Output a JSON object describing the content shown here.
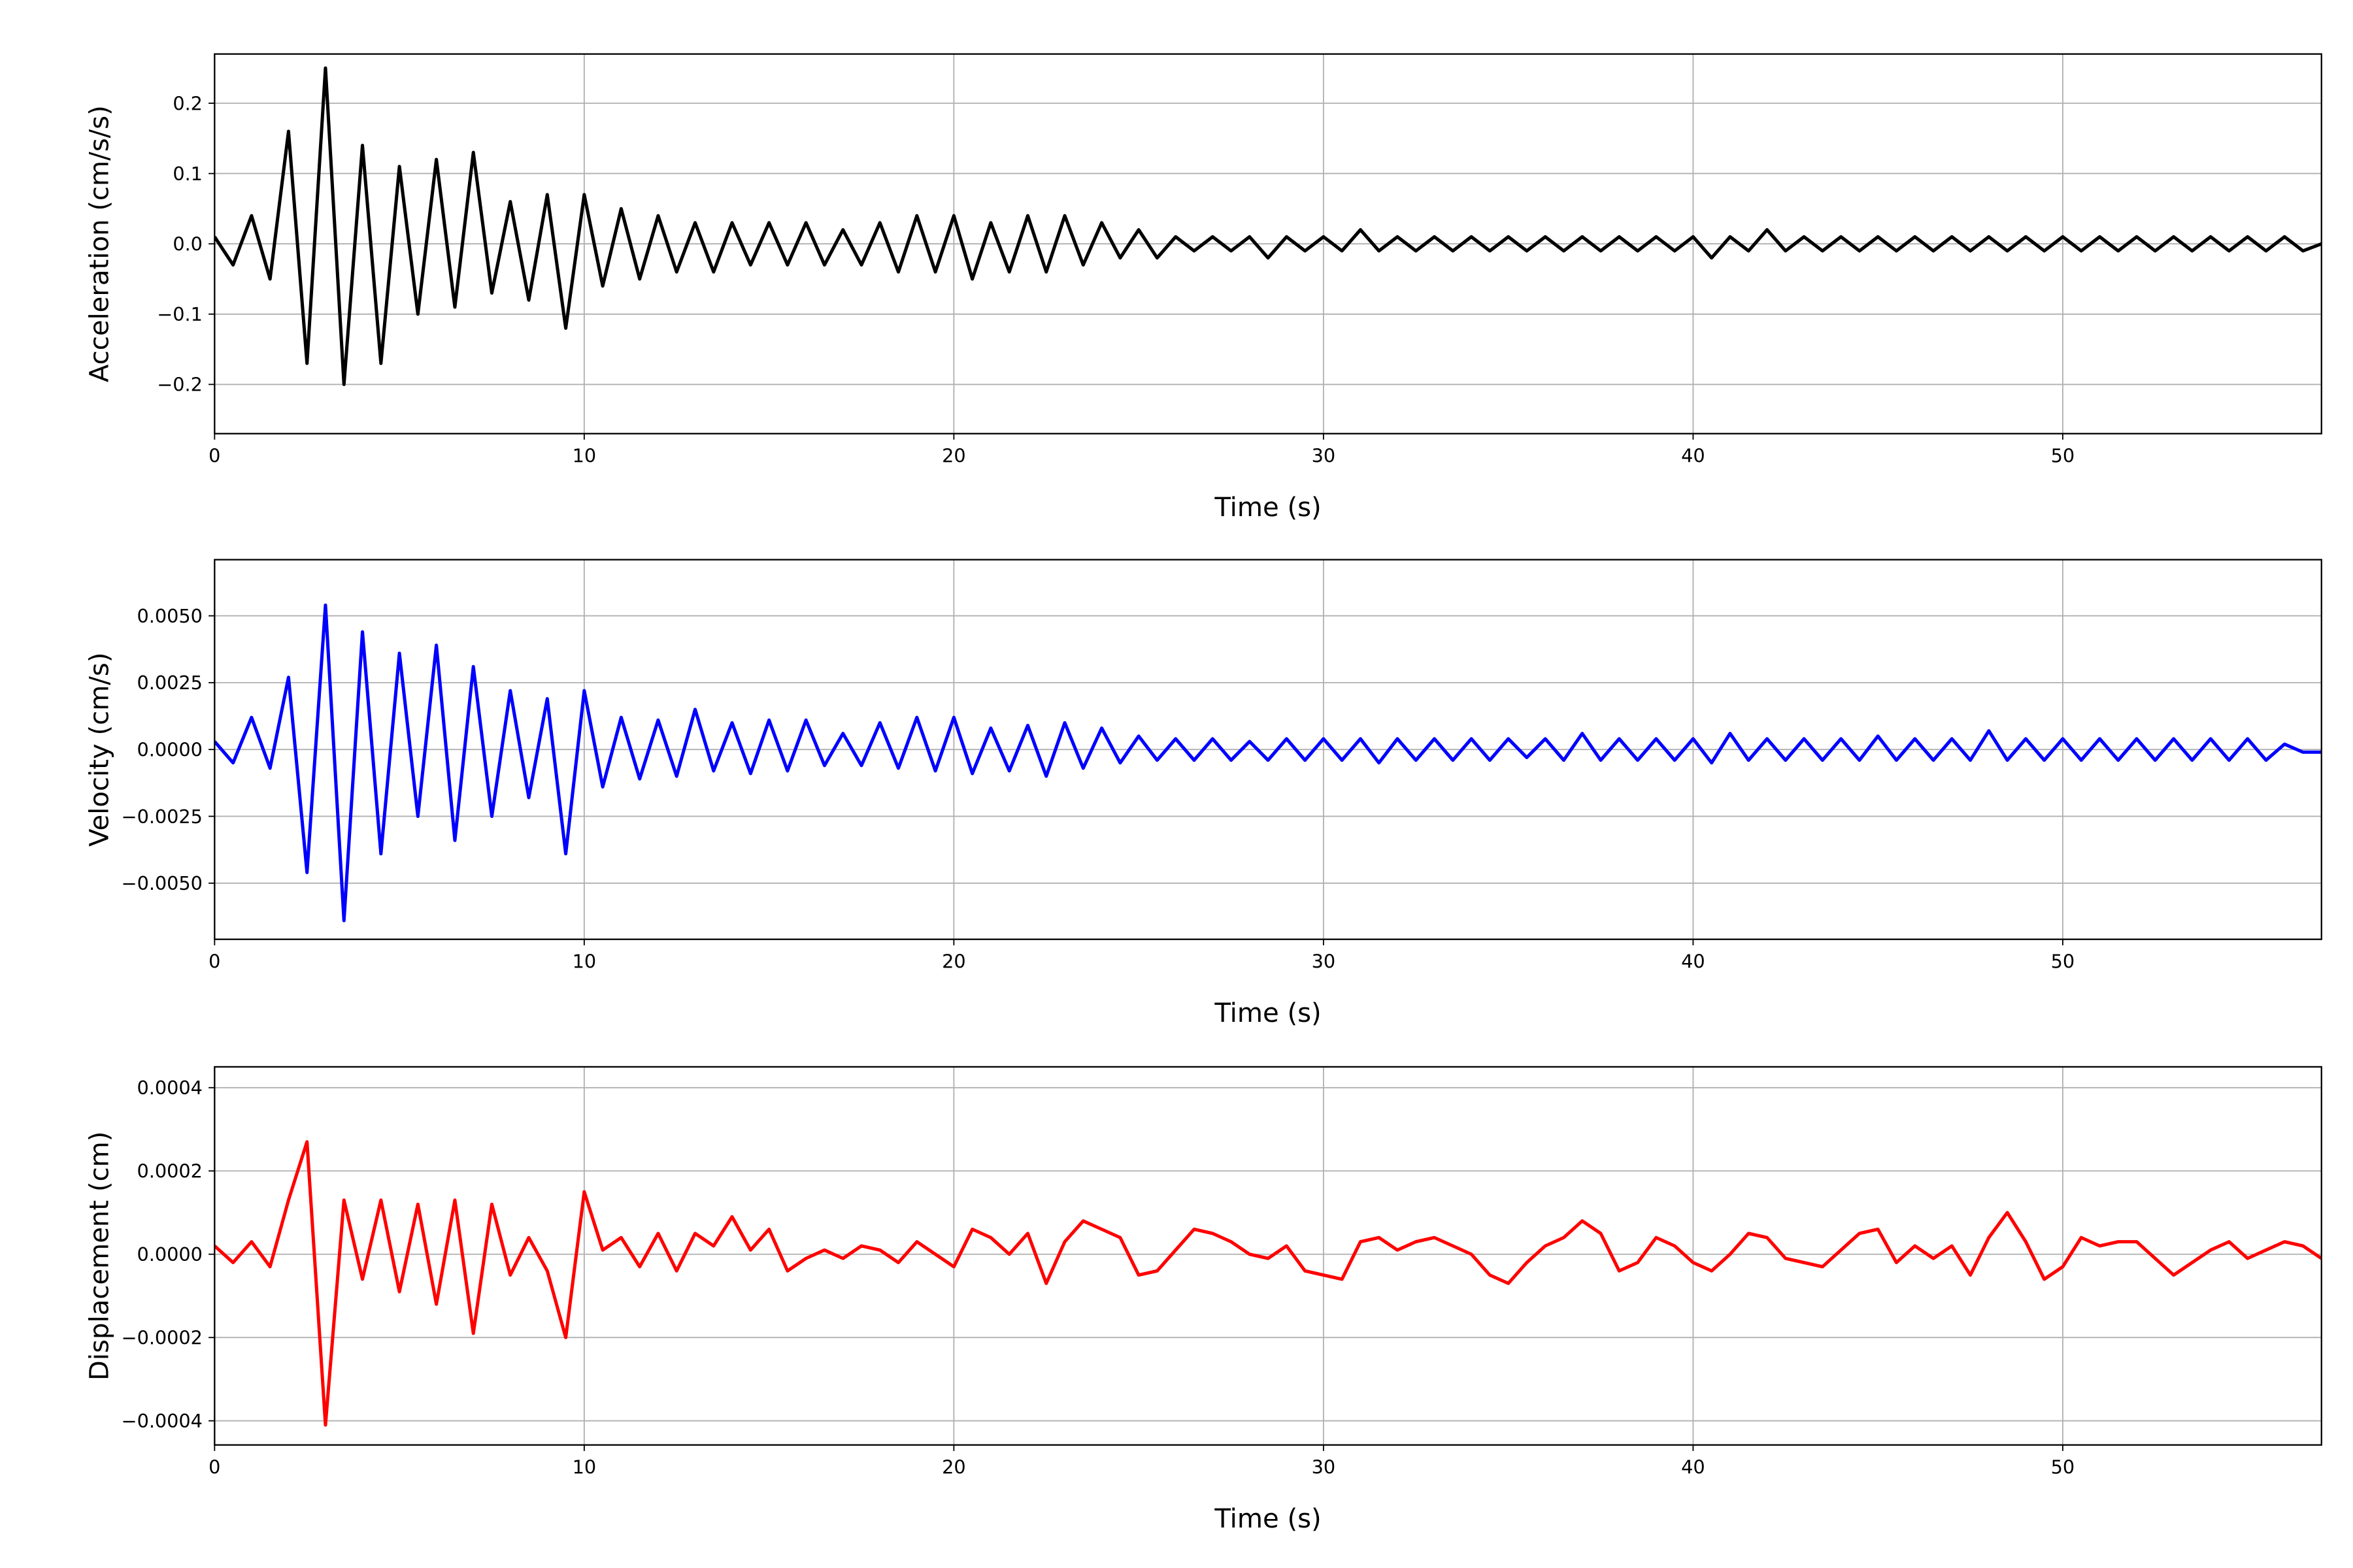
{
  "chart_data": [
    {
      "type": "line",
      "xlabel": "Time (s)",
      "ylabel": "Acceleration (cm/s/s)",
      "color": "#000000",
      "grid": true,
      "xlim": [
        0,
        57
      ],
      "xticks": [
        0,
        10,
        20,
        30,
        40,
        50
      ],
      "ylim": [
        -0.27,
        0.27
      ],
      "yticks": [
        {
          "value": -0.2,
          "label": "−0.2"
        },
        {
          "value": -0.1,
          "label": "−0.1"
        },
        {
          "value": 0,
          "label": "0.0"
        },
        0.1,
        0.2
      ],
      "x": [
        0,
        0.5,
        1,
        1.5,
        2,
        2.5,
        3,
        3.5,
        4,
        4.5,
        5,
        5.5,
        6,
        6.5,
        7,
        7.5,
        8,
        8.5,
        9,
        9.5,
        10,
        10.5,
        11,
        11.5,
        12,
        12.5,
        13,
        13.5,
        14,
        14.5,
        15,
        15.5,
        16,
        16.5,
        17,
        17.5,
        18,
        18.5,
        19,
        19.5,
        20,
        20.5,
        21,
        21.5,
        22,
        22.5,
        23,
        23.5,
        24,
        24.5,
        25,
        25.5,
        26,
        26.5,
        27,
        27.5,
        28,
        28.5,
        29,
        29.5,
        30,
        30.5,
        31,
        31.5,
        32,
        32.5,
        33,
        33.5,
        34,
        34.5,
        35,
        35.5,
        36,
        36.5,
        37,
        37.5,
        38,
        38.5,
        39,
        39.5,
        40,
        40.5,
        41,
        41.5,
        42,
        42.5,
        43,
        43.5,
        44,
        44.5,
        45,
        45.5,
        46,
        46.5,
        47,
        47.5,
        48,
        48.5,
        49,
        49.5,
        50,
        50.5,
        51,
        51.5,
        52,
        52.5,
        53,
        53.5,
        54,
        54.5,
        55,
        55.5,
        56,
        56.5,
        57
      ],
      "values": [
        0.01,
        -0.03,
        0.04,
        -0.05,
        0.16,
        -0.17,
        0.25,
        -0.2,
        0.14,
        -0.17,
        0.11,
        -0.1,
        0.12,
        -0.09,
        0.13,
        -0.07,
        0.06,
        -0.08,
        0.07,
        -0.12,
        0.07,
        -0.06,
        0.05,
        -0.05,
        0.04,
        -0.04,
        0.03,
        -0.04,
        0.03,
        -0.03,
        0.03,
        -0.03,
        0.03,
        -0.03,
        0.02,
        -0.03,
        0.03,
        -0.04,
        0.04,
        -0.04,
        0.04,
        -0.05,
        0.03,
        -0.04,
        0.04,
        -0.04,
        0.04,
        -0.03,
        0.03,
        -0.02,
        0.02,
        -0.02,
        0.01,
        -0.01,
        0.01,
        -0.01,
        0.01,
        -0.02,
        0.01,
        -0.01,
        0.01,
        -0.01,
        0.02,
        -0.01,
        0.01,
        -0.01,
        0.01,
        -0.01,
        0.01,
        -0.01,
        0.01,
        -0.01,
        0.01,
        -0.01,
        0.01,
        -0.01,
        0.01,
        -0.01,
        0.01,
        -0.01,
        0.01,
        -0.02,
        0.01,
        -0.01,
        0.02,
        -0.01,
        0.01,
        -0.01,
        0.01,
        -0.01,
        0.01,
        -0.01,
        0.01,
        -0.01,
        0.01,
        -0.01,
        0.01,
        -0.01,
        0.01,
        -0.01,
        0.01,
        -0.01,
        0.01,
        -0.01,
        0.01,
        -0.01,
        0.01,
        -0.01,
        0.01,
        -0.01,
        0.01,
        -0.01,
        0.01,
        -0.01,
        0
      ]
    },
    {
      "type": "line",
      "xlabel": "Time (s)",
      "ylabel": "Velocity (cm/s)",
      "color": "#0000ff",
      "grid": true,
      "xlim": [
        0,
        57
      ],
      "xticks": [
        0,
        10,
        20,
        30,
        40,
        50
      ],
      "ylim": [
        -0.0071,
        0.0071
      ],
      "yticks": [
        {
          "value": -0.005,
          "label": "−0.0050"
        },
        {
          "value": -0.0025,
          "label": "−0.0025"
        },
        {
          "value": 0,
          "label": "0.0000"
        },
        {
          "value": 0.0025,
          "label": "0.0025"
        },
        {
          "value": 0.005,
          "label": "0.0050"
        }
      ],
      "x": [
        0,
        0.5,
        1,
        1.5,
        2,
        2.5,
        3,
        3.5,
        4,
        4.5,
        5,
        5.5,
        6,
        6.5,
        7,
        7.5,
        8,
        8.5,
        9,
        9.5,
        10,
        10.5,
        11,
        11.5,
        12,
        12.5,
        13,
        13.5,
        14,
        14.5,
        15,
        15.5,
        16,
        16.5,
        17,
        17.5,
        18,
        18.5,
        19,
        19.5,
        20,
        20.5,
        21,
        21.5,
        22,
        22.5,
        23,
        23.5,
        24,
        24.5,
        25,
        25.5,
        26,
        26.5,
        27,
        27.5,
        28,
        28.5,
        29,
        29.5,
        30,
        30.5,
        31,
        31.5,
        32,
        32.5,
        33,
        33.5,
        34,
        34.5,
        35,
        35.5,
        36,
        36.5,
        37,
        37.5,
        38,
        38.5,
        39,
        39.5,
        40,
        40.5,
        41,
        41.5,
        42,
        42.5,
        43,
        43.5,
        44,
        44.5,
        45,
        45.5,
        46,
        46.5,
        47,
        47.5,
        48,
        48.5,
        49,
        49.5,
        50,
        50.5,
        51,
        51.5,
        52,
        52.5,
        53,
        53.5,
        54,
        54.5,
        55,
        55.5,
        56,
        56.5,
        57
      ],
      "values": [
        0.0003,
        -0.0005,
        0.0012,
        -0.0007,
        0.0027,
        -0.0046,
        0.0054,
        -0.0064,
        0.0044,
        -0.0039,
        0.0036,
        -0.0025,
        0.0039,
        -0.0034,
        0.0031,
        -0.0025,
        0.0022,
        -0.0018,
        0.0019,
        -0.0039,
        0.0022,
        -0.0014,
        0.0012,
        -0.0011,
        0.0011,
        -0.001,
        0.0015,
        -0.0008,
        0.001,
        -0.0009,
        0.0011,
        -0.0008,
        0.0011,
        -0.0006,
        0.0006,
        -0.0006,
        0.001,
        -0.0007,
        0.0012,
        -0.0008,
        0.0012,
        -0.0009,
        0.0008,
        -0.0008,
        0.0009,
        -0.001,
        0.001,
        -0.0007,
        0.0008,
        -0.0005,
        0.0005,
        -0.0004,
        0.0004,
        -0.0004,
        0.0004,
        -0.0004,
        0.0003,
        -0.0004,
        0.0004,
        -0.0004,
        0.0004,
        -0.0004,
        0.0004,
        -0.0005,
        0.0004,
        -0.0004,
        0.0004,
        -0.0004,
        0.0004,
        -0.0004,
        0.0004,
        -0.0003,
        0.0004,
        -0.0004,
        0.0006,
        -0.0004,
        0.0004,
        -0.0004,
        0.0004,
        -0.0004,
        0.0004,
        -0.0005,
        0.0006,
        -0.0004,
        0.0004,
        -0.0004,
        0.0004,
        -0.0004,
        0.0004,
        -0.0004,
        0.0005,
        -0.0004,
        0.0004,
        -0.0004,
        0.0004,
        -0.0004,
        0.0007,
        -0.0004,
        0.0004,
        -0.0004,
        0.0004,
        -0.0004,
        0.0004,
        -0.0004,
        0.0004,
        -0.0004,
        0.0004,
        -0.0004,
        0.0004,
        -0.0004,
        0.0004,
        -0.0004,
        0.0002,
        -0.0001,
        -0.0001
      ]
    },
    {
      "type": "line",
      "xlabel": "Time (s)",
      "ylabel": "Displacement (cm)",
      "color": "#ff0000",
      "grid": true,
      "xlim": [
        0,
        57
      ],
      "xticks": [
        0,
        10,
        20,
        30,
        40,
        50
      ],
      "ylim": [
        -0.000458,
        0.00045
      ],
      "yticks": [
        {
          "value": -0.0004,
          "label": "−0.0004"
        },
        {
          "value": -0.0002,
          "label": "−0.0002"
        },
        {
          "value": 0,
          "label": "0.0000"
        },
        0.0002,
        0.0004
      ],
      "x": [
        0,
        0.5,
        1,
        1.5,
        2,
        2.5,
        3,
        3.5,
        4,
        4.5,
        5,
        5.5,
        6,
        6.5,
        7,
        7.5,
        8,
        8.5,
        9,
        9.5,
        10,
        10.5,
        11,
        11.5,
        12,
        12.5,
        13,
        13.5,
        14,
        14.5,
        15,
        15.5,
        16,
        16.5,
        17,
        17.5,
        18,
        18.5,
        19,
        19.5,
        20,
        20.5,
        21,
        21.5,
        22,
        22.5,
        23,
        23.5,
        24,
        24.5,
        25,
        25.5,
        26,
        26.5,
        27,
        27.5,
        28,
        28.5,
        29,
        29.5,
        30,
        30.5,
        31,
        31.5,
        32,
        32.5,
        33,
        33.5,
        34,
        34.5,
        35,
        35.5,
        36,
        36.5,
        37,
        37.5,
        38,
        38.5,
        39,
        39.5,
        40,
        40.5,
        41,
        41.5,
        42,
        42.5,
        43,
        43.5,
        44,
        44.5,
        45,
        45.5,
        46,
        46.5,
        47,
        47.5,
        48,
        48.5,
        49,
        49.5,
        50,
        50.5,
        51,
        51.5,
        52,
        52.5,
        53,
        53.5,
        54,
        54.5,
        55,
        55.5,
        56,
        56.5,
        57
      ],
      "values": [
        2e-05,
        -2e-05,
        3e-05,
        -3e-05,
        0.00013,
        0.00027,
        -0.00041,
        0.00013,
        -6e-05,
        0.00013,
        -9e-05,
        0.00012,
        -0.00012,
        0.00013,
        -0.00019,
        0.00012,
        -5e-05,
        4e-05,
        -4e-05,
        -0.0002,
        0.00015,
        1e-05,
        4e-05,
        -3e-05,
        5e-05,
        -4e-05,
        5e-05,
        2e-05,
        9e-05,
        1e-05,
        6e-05,
        -4e-05,
        -1e-05,
        1e-05,
        -1e-05,
        2e-05,
        1e-05,
        -2e-05,
        3e-05,
        0,
        -3e-05,
        6e-05,
        4e-05,
        0,
        5e-05,
        -7e-05,
        3e-05,
        8e-05,
        6e-05,
        4e-05,
        -5e-05,
        -4e-05,
        1e-05,
        6e-05,
        5e-05,
        3e-05,
        0,
        -1e-05,
        2e-05,
        -4e-05,
        -5e-05,
        -6e-05,
        3e-05,
        4e-05,
        1e-05,
        3e-05,
        4e-05,
        2e-05,
        0,
        -5e-05,
        -7e-05,
        -2e-05,
        2e-05,
        4e-05,
        8e-05,
        5e-05,
        -4e-05,
        -2e-05,
        4e-05,
        2e-05,
        -2e-05,
        -4e-05,
        0,
        5e-05,
        4e-05,
        -1e-05,
        -2e-05,
        -3e-05,
        1e-05,
        5e-05,
        6e-05,
        -2e-05,
        2e-05,
        -1e-05,
        2e-05,
        -5e-05,
        4e-05,
        0.0001,
        3e-05,
        -6e-05,
        -3e-05,
        4e-05,
        2e-05,
        3e-05,
        3e-05,
        -1e-05,
        -5e-05,
        -2e-05,
        1e-05,
        3e-05,
        -1e-05,
        1e-05,
        3e-05,
        2e-05,
        -1e-05
      ]
    }
  ]
}
